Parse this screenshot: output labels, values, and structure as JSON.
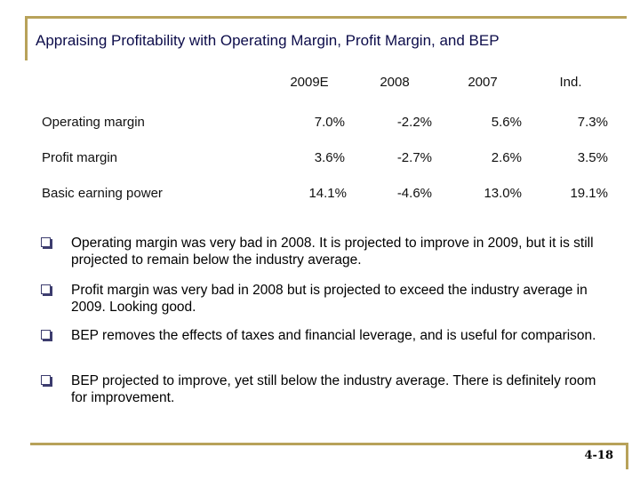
{
  "slide": {
    "title": "Appraising Profitability with Operating Margin, Profit Margin, and BEP",
    "page_number": "4-18"
  },
  "table": {
    "columns": [
      "2009E",
      "2008",
      "2007",
      "Ind."
    ],
    "rows": [
      {
        "label": "Operating margin",
        "values": [
          "7.0%",
          "-2.2%",
          "5.6%",
          "7.3%"
        ]
      },
      {
        "label": "Profit margin",
        "values": [
          "3.6%",
          "-2.7%",
          "2.6%",
          "3.5%"
        ]
      },
      {
        "label": "Basic earning power",
        "values": [
          "14.1%",
          "-4.6%",
          "13.0%",
          "19.1%"
        ]
      }
    ]
  },
  "bullets": [
    {
      "icon": "square-bullet-icon",
      "text": "Operating margin was very bad in 2008.  It is projected to improve in 2009, but it is still projected to remain below the industry average."
    },
    {
      "icon": "square-bullet-icon",
      "text": "Profit margin was very bad in 2008 but is projected to exceed the industry average in 2009.  Looking good."
    },
    {
      "icon": "square-bullet-icon",
      "text": "BEP removes the effects of taxes and financial leverage, and is useful for comparison."
    },
    {
      "icon": "square-bullet-icon",
      "text": "BEP projected to improve, yet still below the industry average.  There is definitely room for improvement."
    }
  ],
  "colors": {
    "accent_gold": "#b8a25a",
    "title_text": "#0c0c4a",
    "bullet_box": "#3c3c6e"
  }
}
